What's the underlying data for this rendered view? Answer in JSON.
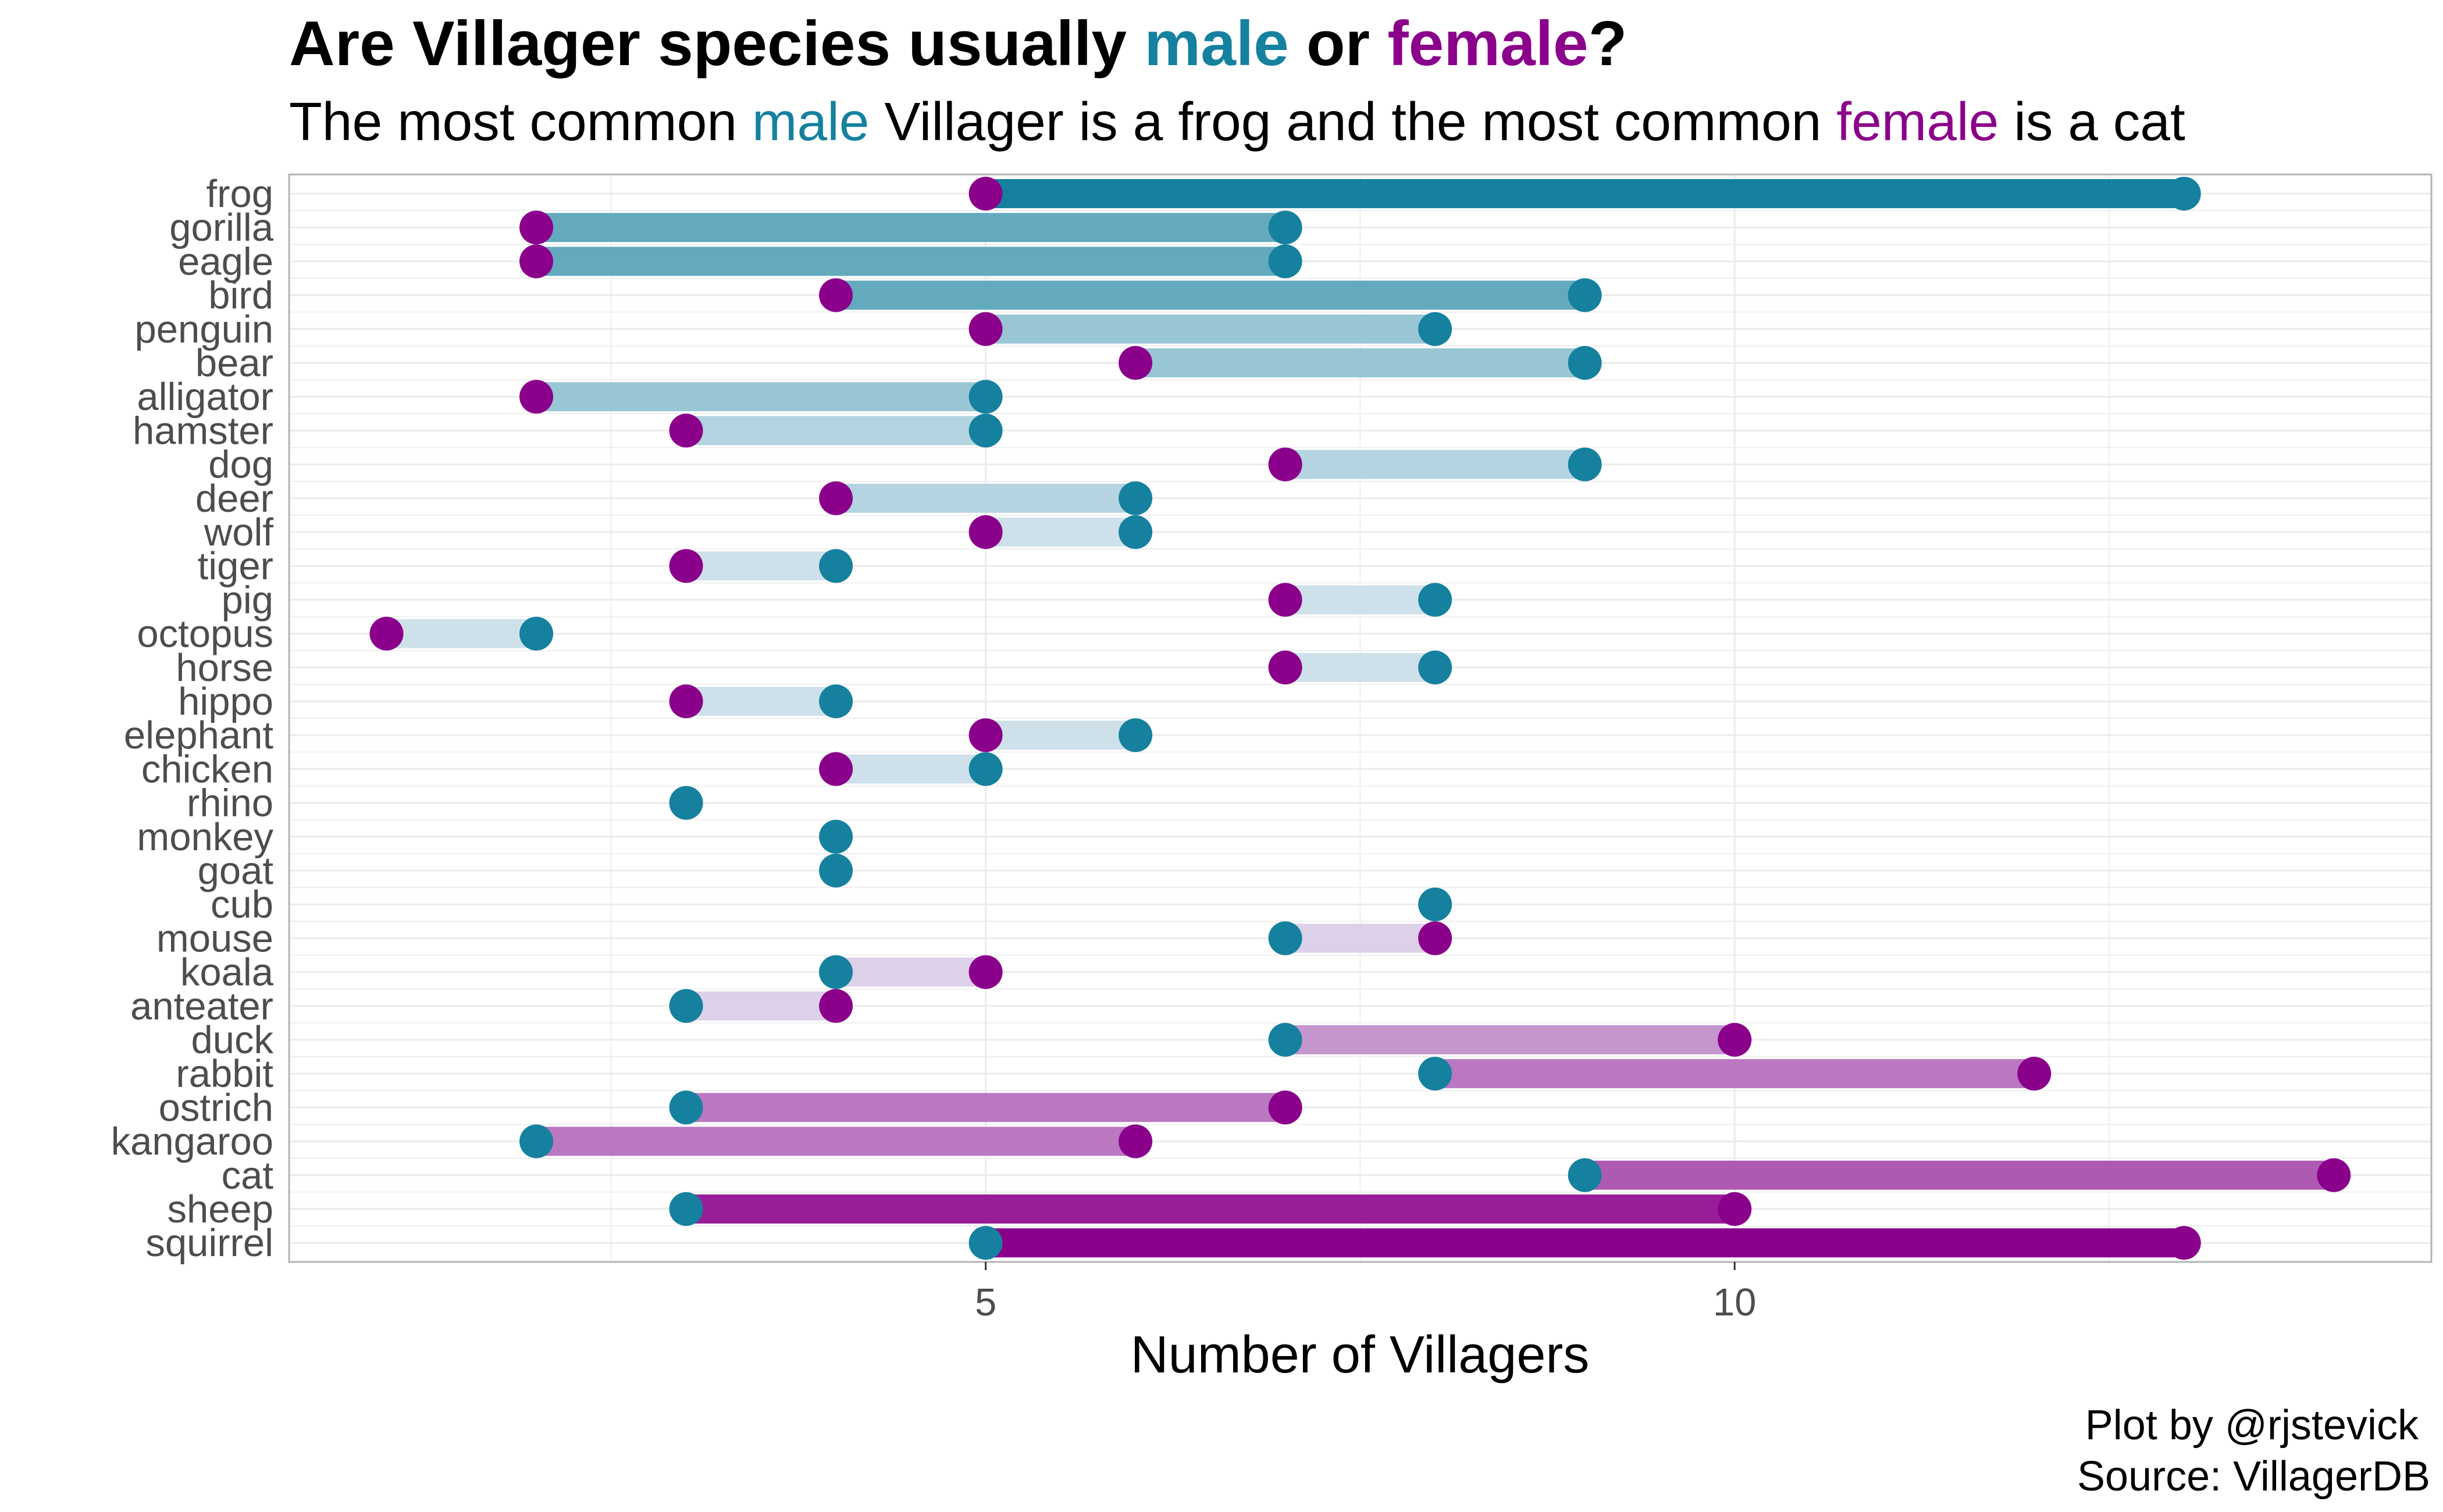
{
  "colors": {
    "male": "#15819f",
    "female": "#8b008b",
    "grid": "#ebebeb",
    "panel_border": "#b3b3b3",
    "bar_neutral": "#e8eff5"
  },
  "title": {
    "prefix": "Are Villager species usually ",
    "male": "male",
    "middle": " or ",
    "female": "female",
    "suffix": "?"
  },
  "subtitle": {
    "prefix": "The most common ",
    "male": "male",
    "middle": " Villager is a frog and the most common ",
    "female": "female",
    "suffix": " is a cat"
  },
  "caption": {
    "line1": "Plot by @rjstevick",
    "line2": "Source: VillagerDB"
  },
  "chart_data": {
    "type": "dumbbell",
    "xlabel": "Number of Villagers",
    "ylabel": "",
    "xlim": [
      0.1,
      14.35
    ],
    "x_ticks": [
      5,
      10
    ],
    "x_tick_labels": [
      "5",
      "10"
    ],
    "grid": true,
    "legend": "none",
    "categories": [
      "frog",
      "gorilla",
      "eagle",
      "bird",
      "penguin",
      "bear",
      "alligator",
      "hamster",
      "dog",
      "deer",
      "wolf",
      "tiger",
      "pig",
      "octopus",
      "horse",
      "hippo",
      "elephant",
      "chicken",
      "rhino",
      "monkey",
      "goat",
      "cub",
      "mouse",
      "koala",
      "anteater",
      "duck",
      "rabbit",
      "ostrich",
      "kangaroo",
      "cat",
      "sheep",
      "squirrel"
    ],
    "series": [
      {
        "name": "male",
        "values": [
          13,
          7,
          7,
          9,
          8,
          9,
          5,
          5,
          9,
          6,
          6,
          4,
          8,
          2,
          8,
          4,
          6,
          5,
          3,
          4,
          4,
          8,
          7,
          4,
          3,
          7,
          8,
          3,
          2,
          9,
          3,
          5
        ]
      },
      {
        "name": "female",
        "values": [
          5,
          2,
          2,
          4,
          5,
          6,
          2,
          3,
          7,
          4,
          5,
          3,
          7,
          1,
          7,
          3,
          5,
          4,
          null,
          null,
          null,
          null,
          8,
          5,
          4,
          10,
          12,
          7,
          6,
          14,
          10,
          13
        ]
      }
    ]
  }
}
